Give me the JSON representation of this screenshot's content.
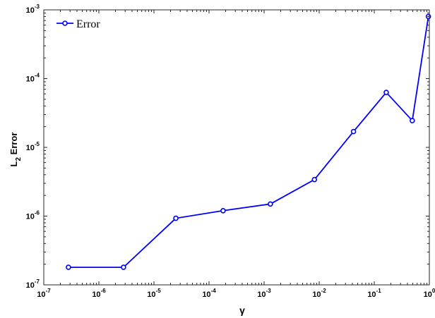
{
  "chart_data": {
    "type": "line",
    "xscale": "log",
    "yscale": "log",
    "xlim": [
      1e-07,
      1
    ],
    "ylim": [
      1e-07,
      0.001
    ],
    "xlabel": "γ",
    "ylabel": {
      "base": "L",
      "sub": "2",
      "rest": " Error"
    },
    "xticks": [
      {
        "value": 1e-07,
        "base": "10",
        "exp": "-7"
      },
      {
        "value": 1e-06,
        "base": "10",
        "exp": "-6"
      },
      {
        "value": 1e-05,
        "base": "10",
        "exp": "-5"
      },
      {
        "value": 0.0001,
        "base": "10",
        "exp": "-4"
      },
      {
        "value": 0.001,
        "base": "10",
        "exp": "-3"
      },
      {
        "value": 0.01,
        "base": "10",
        "exp": "-2"
      },
      {
        "value": 0.1,
        "base": "10",
        "exp": "-1"
      },
      {
        "value": 1,
        "base": "10",
        "exp": "0"
      }
    ],
    "yticks": [
      {
        "value": 1e-07,
        "base": "10",
        "exp": "-7"
      },
      {
        "value": 1e-06,
        "base": "10",
        "exp": "-6"
      },
      {
        "value": 1e-05,
        "base": "10",
        "exp": "-5"
      },
      {
        "value": 0.0001,
        "base": "10",
        "exp": "-4"
      },
      {
        "value": 0.001,
        "base": "10",
        "exp": "-3"
      }
    ],
    "grid": false,
    "legend_position": "top-left",
    "series": [
      {
        "name": "Error",
        "color": "#0000ff",
        "marker": "circle",
        "points": [
          {
            "x": 2.8e-07,
            "y": 1.8e-07
          },
          {
            "x": 2.8e-06,
            "y": 1.8e-07
          },
          {
            "x": 2.5e-05,
            "y": 9.3e-07
          },
          {
            "x": 0.00018,
            "y": 1.2e-06
          },
          {
            "x": 0.0013,
            "y": 1.5e-06
          },
          {
            "x": 0.0082,
            "y": 3.4e-06
          },
          {
            "x": 0.042,
            "y": 1.7e-05
          },
          {
            "x": 0.165,
            "y": 6.3e-05
          },
          {
            "x": 0.49,
            "y": 2.45e-05
          },
          {
            "x": 0.96,
            "y": 0.0008
          }
        ]
      }
    ]
  }
}
